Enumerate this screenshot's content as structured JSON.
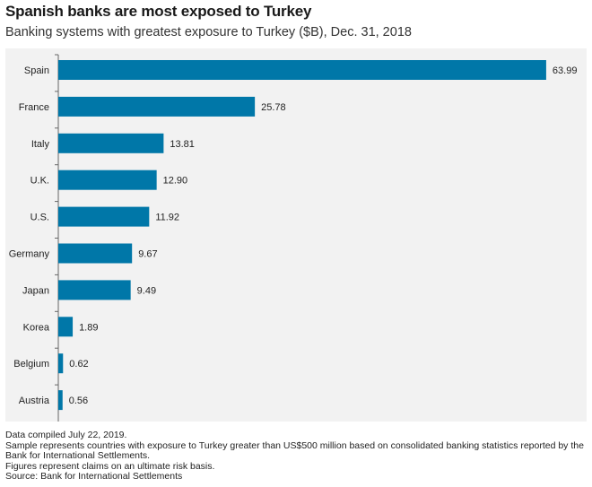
{
  "title": "Spanish banks are most exposed to Turkey",
  "subtitle": "Banking systems with greatest exposure to Turkey ($B), Dec. 31, 2018",
  "colors": {
    "bar": "#0077a8",
    "plot_background": "#f2f2f2"
  },
  "chart_data": {
    "type": "bar",
    "orientation": "horizontal",
    "title": "Spanish banks are most exposed to Turkey",
    "subtitle": "Banking systems with greatest exposure to Turkey ($B), Dec. 31, 2018",
    "categories": [
      "Spain",
      "France",
      "Italy",
      "U.K.",
      "U.S.",
      "Germany",
      "Japan",
      "Korea",
      "Belgium",
      "Austria"
    ],
    "values": [
      63.99,
      25.78,
      13.81,
      12.9,
      11.92,
      9.67,
      9.49,
      1.89,
      0.62,
      0.56
    ],
    "value_labels": [
      "63.99",
      "25.78",
      "13.81",
      "12.90",
      "11.92",
      "9.67",
      "9.49",
      "1.89",
      "0.62",
      "0.56"
    ],
    "xlim": [
      0,
      64
    ],
    "grid": false,
    "legend": false
  },
  "notes": [
    "Data compiled July 22, 2019.",
    "Sample represents countries with exposure to Turkey greater than US$500 million based on consolidated banking statistics reported by the Bank for International Settlements.",
    "Figures represent claims on an ultimate risk basis.",
    "Source: Bank for International Settlements"
  ]
}
